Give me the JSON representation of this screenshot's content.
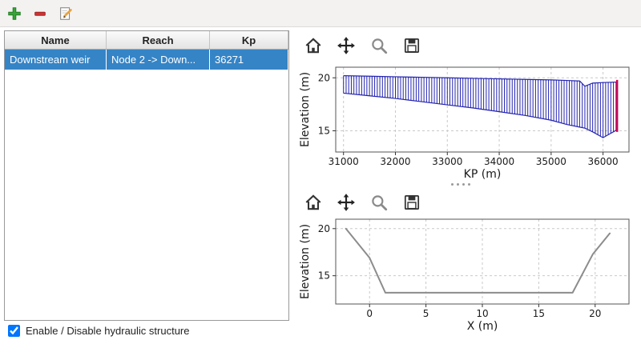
{
  "app_toolbar": {
    "buttons": [
      {
        "name": "add",
        "label": "Add structure"
      },
      {
        "name": "remove",
        "label": "Remove structure"
      },
      {
        "name": "edit",
        "label": "Edit structure"
      }
    ]
  },
  "table": {
    "headers": [
      "Name",
      "Reach",
      "Kp"
    ],
    "rows": [
      [
        "Downstream weir",
        "Node 2 -> Down...",
        "36271"
      ]
    ],
    "selected_index": 0
  },
  "checkbox": {
    "label": "Enable / Disable hydraulic structure",
    "checked": true
  },
  "chart_toolbar": {
    "buttons": [
      "home",
      "pan",
      "zoom",
      "save"
    ]
  },
  "colors": {
    "selection": "#3584c6",
    "hatch": "#2323b0",
    "red_marker": "#d4004c",
    "profile_line": "#8c8c8c",
    "grid": "#c9c9c9"
  },
  "chart_data": [
    {
      "type": "area",
      "title": "",
      "xlabel": "KP (m)",
      "ylabel": "Elevation (m)",
      "xlim": [
        30850,
        36500
      ],
      "ylim": [
        13,
        21
      ],
      "xticks": [
        31000,
        32000,
        33000,
        34000,
        35000,
        36000
      ],
      "yticks": [
        15,
        20
      ],
      "grid": true,
      "x": [
        31000,
        31500,
        32000,
        32500,
        33000,
        33500,
        34000,
        34500,
        35000,
        35300,
        35550,
        35650,
        35800,
        36000,
        36271
      ],
      "top": [
        20.2,
        20.15,
        20.1,
        20.05,
        20.0,
        19.95,
        19.9,
        19.85,
        19.8,
        19.75,
        19.7,
        19.2,
        19.5,
        19.55,
        19.6
      ],
      "bottom": [
        18.55,
        18.3,
        18.05,
        17.75,
        17.45,
        17.15,
        16.8,
        16.45,
        16.0,
        15.6,
        15.35,
        15.25,
        14.9,
        14.35,
        15.1
      ],
      "hatch_step": 50,
      "marker_x": 36271
    },
    {
      "type": "line",
      "title": "",
      "xlabel": "X (m)",
      "ylabel": "Elevation (m)",
      "xlim": [
        -3,
        23
      ],
      "ylim": [
        12,
        21
      ],
      "xticks": [
        0,
        5,
        10,
        15,
        20
      ],
      "yticks": [
        15,
        20
      ],
      "grid": true,
      "x": [
        -2.1,
        0.0,
        1.4,
        18.0,
        19.8,
        21.3
      ],
      "y": [
        20.0,
        16.9,
        13.2,
        13.2,
        17.3,
        19.5
      ]
    }
  ]
}
